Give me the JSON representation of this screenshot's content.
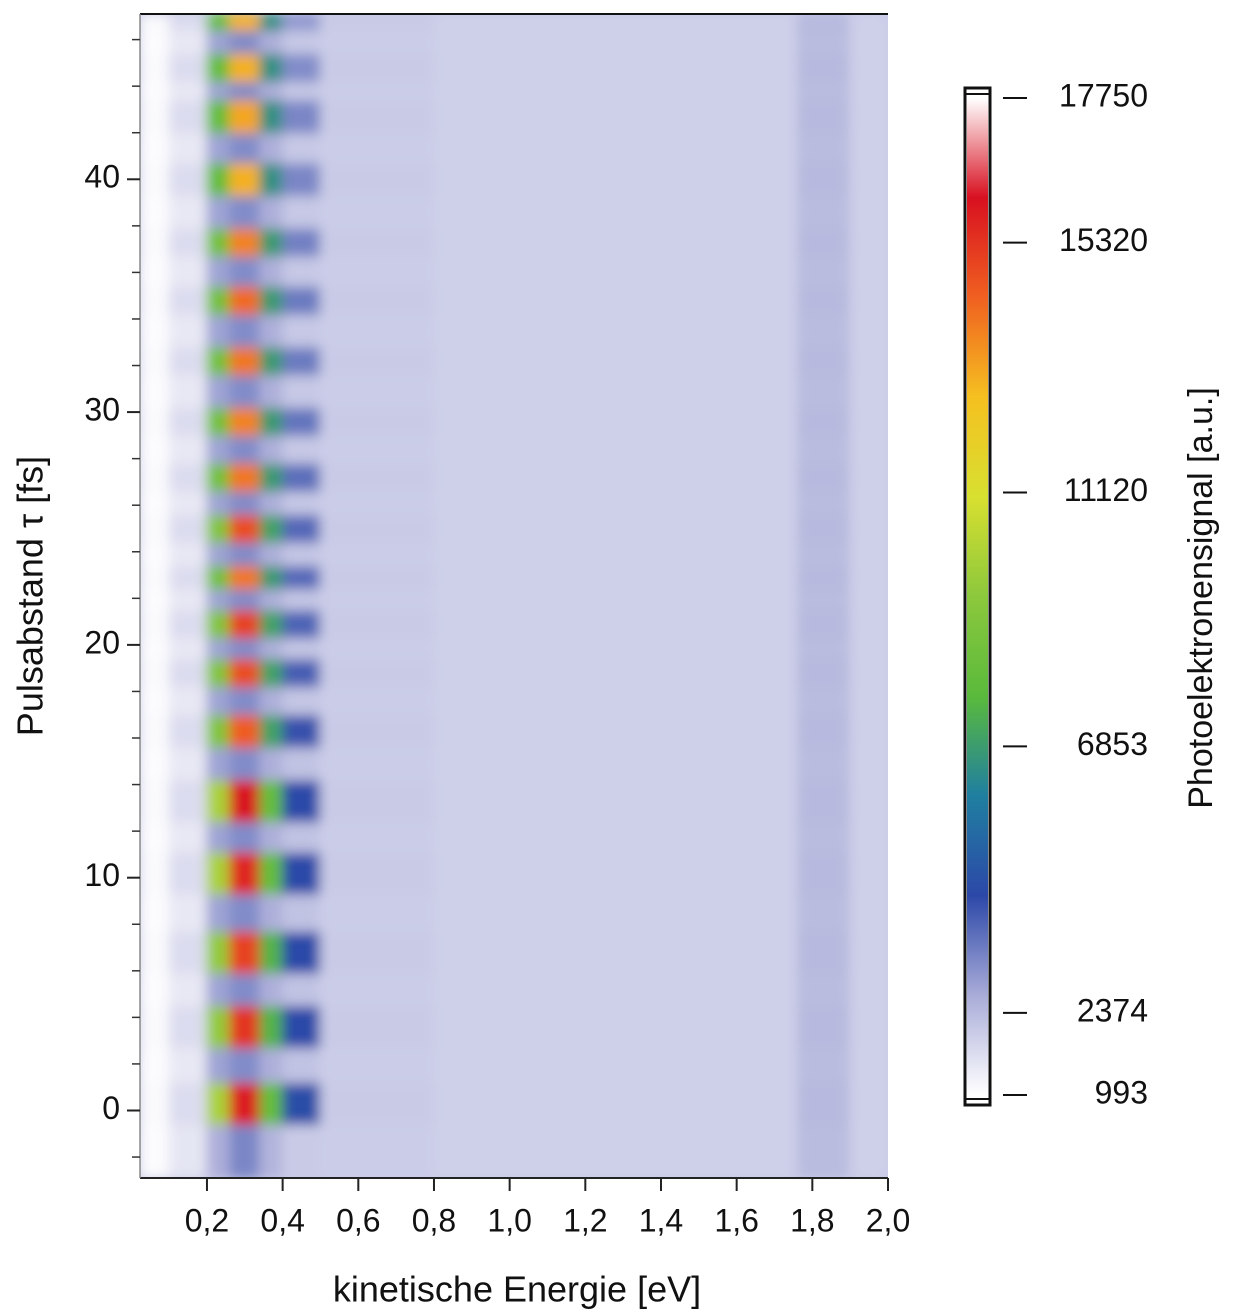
{
  "chart_data": {
    "type": "heatmap",
    "xlabel": "kinetische Energie [eV]",
    "ylabel": "Pulsabstand τ [fs]",
    "colorbar_label": "Photoelektronensignal [a.u.]",
    "xlim": [
      0.023,
      2.0
    ],
    "ylim": [
      -2.9,
      47.1
    ],
    "xticks": [
      {
        "value": 0.2,
        "label": "0,2"
      },
      {
        "value": 0.4,
        "label": "0,4"
      },
      {
        "value": 0.6,
        "label": "0,6"
      },
      {
        "value": 0.8,
        "label": "0,8"
      },
      {
        "value": 1.0,
        "label": "1,0"
      },
      {
        "value": 1.2,
        "label": "1,2"
      },
      {
        "value": 1.4,
        "label": "1,4"
      },
      {
        "value": 1.6,
        "label": "1,6"
      },
      {
        "value": 1.8,
        "label": "1,8"
      },
      {
        "value": 2.0,
        "label": "2,0"
      }
    ],
    "yticks": [
      0,
      10,
      20,
      30,
      40
    ],
    "yminorticks": [
      -2,
      2,
      4,
      6,
      8,
      12,
      14,
      16,
      18,
      22,
      24,
      26,
      28,
      32,
      34,
      36,
      38,
      42,
      44,
      46
    ],
    "clim": [
      993,
      17750
    ],
    "cticks": [
      993,
      2374,
      6853,
      11120,
      15320,
      17750
    ],
    "colorscale": [
      "#ffffff",
      "#a9acd8",
      "#2c48a8",
      "#1f7fa0",
      "#5aba3c",
      "#8cc83c",
      "#d8e030",
      "#f5c020",
      "#f06020",
      "#d81020",
      "#ffffff"
    ],
    "xbins": [
      0.023,
      0.1,
      0.2,
      0.26,
      0.34,
      0.4,
      0.5,
      0.8,
      1.2,
      1.6,
      1.76,
      1.9,
      2.0
    ],
    "ybins": [
      -2.9,
      -0.6,
      1.2,
      2.7,
      4.5,
      5.9,
      7.7,
      9.3,
      11.1,
      12.4,
      14.2,
      15.6,
      17.0,
      18.2,
      19.4,
      20.3,
      21.5,
      22.4,
      23.4,
      24.4,
      25.6,
      26.6,
      27.8,
      29.0,
      30.2,
      31.6,
      32.8,
      34.2,
      35.4,
      36.7,
      37.9,
      39.3,
      40.7,
      42.0,
      43.4,
      44.2,
      45.4,
      46.4,
      47.1
    ],
    "z": [
      [
        1050,
        1500,
        2600,
        3300,
        2500,
        2050,
        2000,
        1950,
        1950,
        1950,
        2350,
        1950
      ],
      [
        1100,
        1700,
        10000,
        15800,
        8000,
        4500,
        2050,
        1950,
        1950,
        1950,
        2400,
        1950
      ],
      [
        1050,
        1450,
        2800,
        3200,
        2600,
        2200,
        2000,
        1950,
        1950,
        1950,
        2350,
        1950
      ],
      [
        1100,
        1700,
        9500,
        15300,
        7500,
        4400,
        2050,
        1950,
        1950,
        1950,
        2400,
        1950
      ],
      [
        1050,
        1450,
        2800,
        3200,
        2600,
        2200,
        2000,
        1950,
        1950,
        1950,
        2350,
        1950
      ],
      [
        1100,
        1700,
        9500,
        15000,
        7500,
        4400,
        2050,
        1950,
        1950,
        1950,
        2400,
        1950
      ],
      [
        1050,
        1450,
        2800,
        3200,
        2600,
        2200,
        2000,
        1950,
        1950,
        1950,
        2350,
        1950
      ],
      [
        1100,
        1700,
        10000,
        15600,
        8000,
        4400,
        2050,
        1950,
        1950,
        1950,
        2400,
        1950
      ],
      [
        1050,
        1450,
        2800,
        3200,
        2600,
        2200,
        2000,
        1950,
        1950,
        1950,
        2350,
        1950
      ],
      [
        1100,
        1700,
        10000,
        16000,
        8000,
        4400,
        2050,
        1950,
        1950,
        1950,
        2400,
        1950
      ],
      [
        1050,
        1450,
        2800,
        3200,
        2600,
        2200,
        2000,
        1950,
        1950,
        1950,
        2350,
        1950
      ],
      [
        1100,
        1700,
        9000,
        14500,
        7000,
        4200,
        2050,
        1950,
        1950,
        1950,
        2400,
        1950
      ],
      [
        1050,
        1450,
        2800,
        3200,
        2600,
        2150,
        2000,
        1950,
        1950,
        1950,
        2350,
        1950
      ],
      [
        1100,
        1700,
        9000,
        14800,
        7000,
        4000,
        2050,
        1950,
        1950,
        1950,
        2400,
        1950
      ],
      [
        1050,
        1450,
        2800,
        3200,
        2600,
        2150,
        2000,
        1950,
        1950,
        1950,
        2350,
        1950
      ],
      [
        1100,
        1700,
        9000,
        15000,
        7000,
        3900,
        2050,
        1950,
        1950,
        1950,
        2400,
        1950
      ],
      [
        1050,
        1450,
        2800,
        3200,
        2600,
        2150,
        2000,
        1950,
        1950,
        1950,
        2350,
        1950
      ],
      [
        1100,
        1700,
        8500,
        14000,
        6800,
        3800,
        2050,
        1950,
        1950,
        1950,
        2400,
        1950
      ],
      [
        1050,
        1450,
        2800,
        3200,
        2600,
        2150,
        2000,
        1950,
        1950,
        1950,
        2350,
        1950
      ],
      [
        1100,
        1700,
        9000,
        14800,
        7000,
        3800,
        2050,
        1950,
        1950,
        1950,
        2400,
        1950
      ],
      [
        1050,
        1450,
        2800,
        3200,
        2600,
        2100,
        2000,
        1950,
        1950,
        1950,
        2350,
        1950
      ],
      [
        1100,
        1700,
        8500,
        14000,
        6800,
        3700,
        2050,
        1950,
        1950,
        1950,
        2400,
        1950
      ],
      [
        1050,
        1450,
        2800,
        3200,
        2600,
        2100,
        2000,
        1950,
        1950,
        1950,
        2350,
        1950
      ],
      [
        1100,
        1700,
        8500,
        13800,
        6800,
        3600,
        2050,
        1950,
        1950,
        1950,
        2400,
        1950
      ],
      [
        1050,
        1450,
        2800,
        3200,
        2600,
        2100,
        2000,
        1950,
        1950,
        1950,
        2350,
        1950
      ],
      [
        1100,
        1700,
        8500,
        14000,
        6800,
        3500,
        2050,
        1950,
        1950,
        1950,
        2400,
        1950
      ],
      [
        1050,
        1450,
        2800,
        3200,
        2600,
        2100,
        2000,
        1950,
        1950,
        1950,
        2350,
        1950
      ],
      [
        1100,
        1700,
        8500,
        14200,
        6800,
        3500,
        2050,
        1950,
        1950,
        1950,
        2400,
        1950
      ],
      [
        1050,
        1450,
        2800,
        3200,
        2600,
        2100,
        2000,
        1950,
        1950,
        1950,
        2350,
        1950
      ],
      [
        1100,
        1700,
        8500,
        13800,
        6800,
        3400,
        2050,
        1950,
        1950,
        1950,
        2400,
        1950
      ],
      [
        1050,
        1450,
        2800,
        3200,
        2600,
        2100,
        2000,
        1950,
        1950,
        1950,
        2350,
        1950
      ],
      [
        1100,
        1700,
        8000,
        13000,
        6500,
        3300,
        2050,
        1950,
        1950,
        1950,
        2400,
        1950
      ],
      [
        1050,
        1450,
        2800,
        3200,
        2600,
        2100,
        2000,
        1950,
        1950,
        1950,
        2350,
        1950
      ],
      [
        1100,
        1700,
        8000,
        13200,
        6500,
        3300,
        2050,
        1950,
        1950,
        1950,
        2400,
        1950
      ],
      [
        1050,
        1450,
        2800,
        3200,
        2600,
        2100,
        2000,
        1950,
        1950,
        1950,
        2350,
        1950
      ],
      [
        1100,
        1700,
        8000,
        13000,
        6500,
        3200,
        2050,
        1950,
        1950,
        1950,
        2400,
        1950
      ],
      [
        1050,
        1450,
        2800,
        3200,
        2600,
        2100,
        2000,
        1950,
        1950,
        1950,
        2350,
        1950
      ],
      [
        1100,
        1700,
        8000,
        13000,
        6500,
        3000,
        2050,
        1950,
        1950,
        1950,
        2400,
        1950
      ]
    ]
  }
}
